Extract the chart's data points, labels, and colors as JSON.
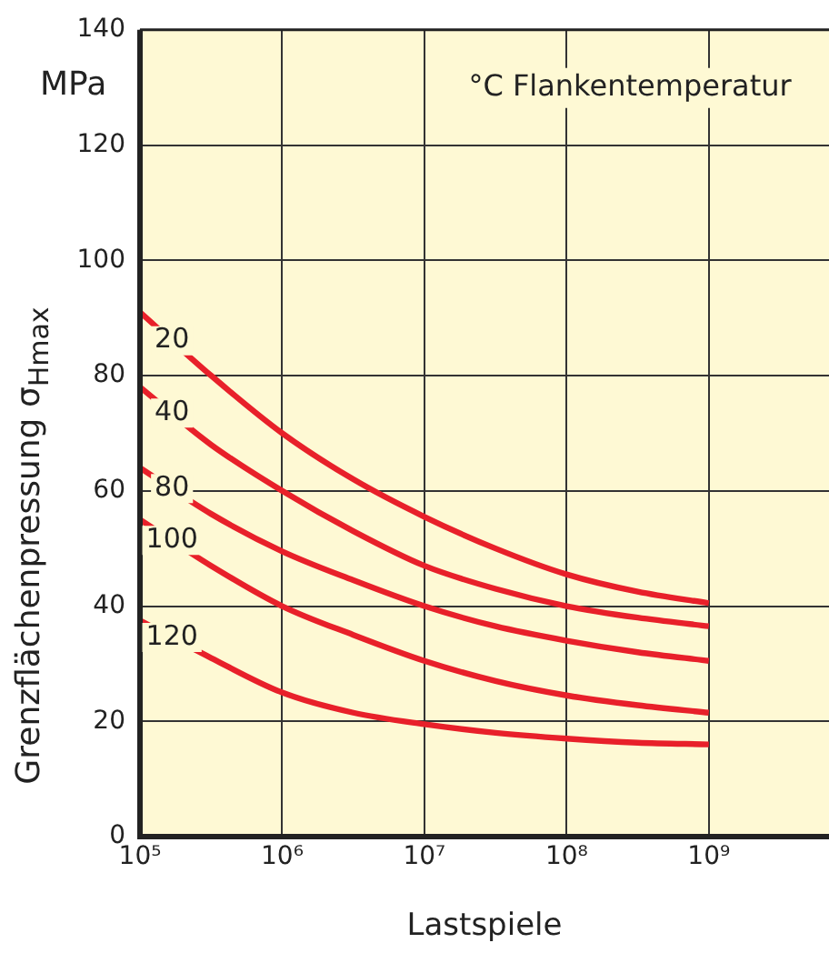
{
  "chart_data": {
    "type": "line",
    "legend_title": "°C Flankentemperatur",
    "xlabel": "Lastspiele",
    "ylabel": "Grenzflächenpressung σ$_{Hmax}$",
    "annotations": [
      "MPa"
    ],
    "log": "x",
    "xlim": [
      100000,
      7000000000
    ],
    "xticks": [
      {
        "value": 100000,
        "label": "10⁵"
      },
      {
        "value": 1000000,
        "label": "10⁶"
      },
      {
        "value": 10000000,
        "label": "10⁷"
      },
      {
        "value": 100000000,
        "label": "10⁸"
      },
      {
        "value": 1000000000,
        "label": "10⁹"
      }
    ],
    "ylim": [
      0,
      140
    ],
    "yticks": [
      0,
      20,
      40,
      60,
      80,
      100,
      120,
      140
    ],
    "grid": true,
    "legend": false,
    "marker": "none",
    "line_style": "solid",
    "x": [
      100000,
      316228,
      1000000,
      3162278,
      10000000,
      31622777,
      100000000,
      316227766,
      1000000000
    ],
    "series": [
      {
        "name": "20",
        "color": "#e8202a",
        "values": [
          91,
          80,
          70,
          62,
          55.5,
          50,
          45.5,
          42.5,
          40.5
        ]
      },
      {
        "name": "40",
        "color": "#e8202a",
        "values": [
          78,
          68,
          60,
          53,
          47,
          43,
          40,
          38,
          36.5
        ]
      },
      {
        "name": "80",
        "color": "#e8202a",
        "values": [
          64,
          56,
          49.5,
          44.5,
          40,
          36.5,
          34,
          32,
          30.5
        ]
      },
      {
        "name": "100",
        "color": "#e8202a",
        "values": [
          55,
          47,
          40,
          35,
          30.5,
          27,
          24.5,
          22.8,
          21.5
        ]
      },
      {
        "name": "120",
        "color": "#e8202a",
        "values": [
          37.5,
          31,
          25,
          21.5,
          19.5,
          18,
          17,
          16.3,
          16
        ]
      }
    ]
  }
}
